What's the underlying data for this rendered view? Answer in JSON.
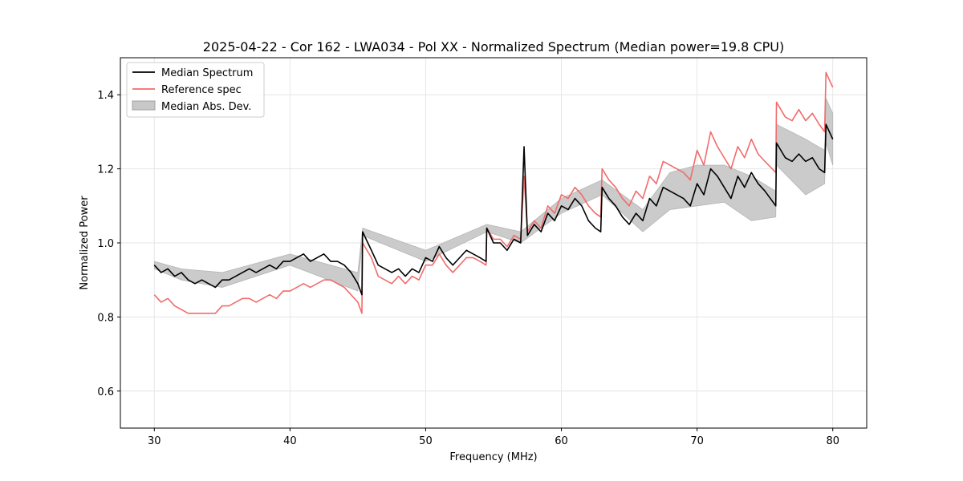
{
  "chart_data": {
    "type": "line",
    "title": "2025-04-22 - Cor 162 - LWA034 - Pol XX - Normalized Spectrum (Median power=19.8 CPU)",
    "xlabel": "Frequency (MHz)",
    "ylabel": "Normalized Power",
    "xlim": [
      27.5,
      82.5
    ],
    "ylim": [
      0.5,
      1.5
    ],
    "xticks": [
      30,
      40,
      50,
      60,
      70,
      80
    ],
    "yticks": [
      0.6,
      0.8,
      1.0,
      1.2,
      1.4
    ],
    "xtick_labels": [
      "30",
      "40",
      "50",
      "60",
      "70",
      "80"
    ],
    "ytick_labels": [
      "0.6",
      "0.8",
      "1.0",
      "1.2",
      "1.4"
    ],
    "grid": true,
    "legend_position": "top-left",
    "legend": [
      "Median Spectrum",
      "Reference spec",
      "Median Abs. Dev."
    ],
    "series": [
      {
        "name": "Median Spectrum",
        "color": "#000000",
        "x": [
          30,
          30.5,
          31,
          31.5,
          32,
          32.5,
          33,
          33.5,
          34,
          34.5,
          35,
          35.5,
          36,
          36.5,
          37,
          37.5,
          38,
          38.5,
          39,
          39.5,
          40,
          40.5,
          41,
          41.5,
          42,
          42.5,
          43,
          43.5,
          44,
          44.5,
          45,
          45.3,
          45.35,
          46,
          46.5,
          47,
          47.5,
          48,
          48.5,
          49,
          49.5,
          50,
          50.5,
          51,
          51.5,
          52,
          52.5,
          53,
          53.5,
          54,
          54.45,
          54.5,
          55,
          55.5,
          56,
          56.5,
          57,
          57.25,
          57.5,
          58,
          58.5,
          59,
          59.5,
          60,
          60.5,
          61,
          61.5,
          62,
          62.5,
          62.9,
          63,
          63.5,
          64,
          64.5,
          65,
          65.5,
          66,
          66.5,
          67,
          67.5,
          68,
          68.5,
          69,
          69.5,
          70,
          70.5,
          71,
          71.5,
          72,
          72.5,
          73,
          73.5,
          74,
          74.5,
          75,
          75.8,
          75.85,
          76.5,
          77,
          77.5,
          78,
          78.5,
          79,
          79.4,
          79.5,
          80
        ],
        "values": [
          0.94,
          0.92,
          0.93,
          0.91,
          0.92,
          0.9,
          0.89,
          0.9,
          0.89,
          0.88,
          0.9,
          0.9,
          0.91,
          0.92,
          0.93,
          0.92,
          0.93,
          0.94,
          0.93,
          0.95,
          0.95,
          0.96,
          0.97,
          0.95,
          0.96,
          0.97,
          0.95,
          0.95,
          0.94,
          0.92,
          0.89,
          0.86,
          1.03,
          0.98,
          0.94,
          0.93,
          0.92,
          0.93,
          0.91,
          0.93,
          0.92,
          0.96,
          0.95,
          0.99,
          0.96,
          0.94,
          0.96,
          0.98,
          0.97,
          0.96,
          0.95,
          1.04,
          1.0,
          1.0,
          0.98,
          1.01,
          1.0,
          1.26,
          1.02,
          1.05,
          1.03,
          1.08,
          1.06,
          1.1,
          1.09,
          1.12,
          1.1,
          1.06,
          1.04,
          1.03,
          1.15,
          1.12,
          1.1,
          1.07,
          1.05,
          1.08,
          1.06,
          1.12,
          1.1,
          1.15,
          1.14,
          1.13,
          1.12,
          1.1,
          1.16,
          1.13,
          1.2,
          1.18,
          1.15,
          1.12,
          1.18,
          1.15,
          1.19,
          1.16,
          1.14,
          1.1,
          1.27,
          1.23,
          1.22,
          1.24,
          1.22,
          1.23,
          1.2,
          1.19,
          1.32,
          1.28
        ]
      },
      {
        "name": "Reference spec",
        "color": "#f26b6b",
        "x": [
          30,
          30.5,
          31,
          31.5,
          32,
          32.5,
          33,
          33.5,
          34,
          34.5,
          35,
          35.5,
          36,
          36.5,
          37,
          37.5,
          38,
          38.5,
          39,
          39.5,
          40,
          40.5,
          41,
          41.5,
          42,
          42.5,
          43,
          43.5,
          44,
          44.5,
          45,
          45.3,
          45.35,
          46,
          46.5,
          47,
          47.5,
          48,
          48.5,
          49,
          49.5,
          50,
          50.5,
          51,
          51.5,
          52,
          52.5,
          53,
          53.5,
          54,
          54.45,
          54.5,
          55,
          55.5,
          56,
          56.5,
          57,
          57.25,
          57.5,
          58,
          58.5,
          59,
          59.5,
          60,
          60.5,
          61,
          61.5,
          62,
          62.5,
          62.9,
          63,
          63.5,
          64,
          64.5,
          65,
          65.5,
          66,
          66.5,
          67,
          67.5,
          68,
          68.5,
          69,
          69.5,
          70,
          70.5,
          71,
          71.5,
          72,
          72.5,
          73,
          73.5,
          74,
          74.5,
          75,
          75.8,
          75.85,
          76.5,
          77,
          77.5,
          78,
          78.5,
          79,
          79.4,
          79.5,
          80
        ],
        "values": [
          0.86,
          0.84,
          0.85,
          0.83,
          0.82,
          0.81,
          0.81,
          0.81,
          0.81,
          0.81,
          0.83,
          0.83,
          0.84,
          0.85,
          0.85,
          0.84,
          0.85,
          0.86,
          0.85,
          0.87,
          0.87,
          0.88,
          0.89,
          0.88,
          0.89,
          0.9,
          0.9,
          0.89,
          0.88,
          0.86,
          0.84,
          0.81,
          1.0,
          0.96,
          0.91,
          0.9,
          0.89,
          0.91,
          0.89,
          0.91,
          0.9,
          0.94,
          0.94,
          0.97,
          0.94,
          0.92,
          0.94,
          0.96,
          0.96,
          0.95,
          0.94,
          1.04,
          1.01,
          1.01,
          0.99,
          1.02,
          1.01,
          1.18,
          1.03,
          1.06,
          1.04,
          1.1,
          1.08,
          1.13,
          1.12,
          1.15,
          1.13,
          1.1,
          1.08,
          1.07,
          1.2,
          1.17,
          1.15,
          1.12,
          1.1,
          1.14,
          1.12,
          1.18,
          1.16,
          1.22,
          1.21,
          1.2,
          1.19,
          1.17,
          1.25,
          1.21,
          1.3,
          1.26,
          1.23,
          1.2,
          1.26,
          1.23,
          1.28,
          1.24,
          1.22,
          1.19,
          1.38,
          1.34,
          1.33,
          1.36,
          1.33,
          1.35,
          1.32,
          1.3,
          1.46,
          1.42
        ]
      }
    ],
    "band": {
      "name": "Median Abs. Dev.",
      "color": "#c8c8c8",
      "x": [
        30,
        32,
        35,
        40,
        45,
        45.35,
        50,
        54.5,
        57,
        60,
        63,
        66,
        68,
        70,
        72,
        74,
        75.8,
        75.85,
        78,
        79.4,
        79.5,
        80
      ],
      "lower": [
        0.93,
        0.9,
        0.88,
        0.94,
        0.87,
        1.02,
        0.95,
        1.03,
        1.0,
        1.08,
        1.13,
        1.03,
        1.09,
        1.1,
        1.11,
        1.06,
        1.07,
        1.21,
        1.13,
        1.16,
        1.27,
        1.21
      ],
      "upper": [
        0.95,
        0.93,
        0.92,
        0.97,
        0.92,
        1.04,
        0.98,
        1.05,
        1.03,
        1.12,
        1.17,
        1.09,
        1.19,
        1.21,
        1.21,
        1.18,
        1.14,
        1.32,
        1.28,
        1.25,
        1.39,
        1.35
      ]
    }
  }
}
